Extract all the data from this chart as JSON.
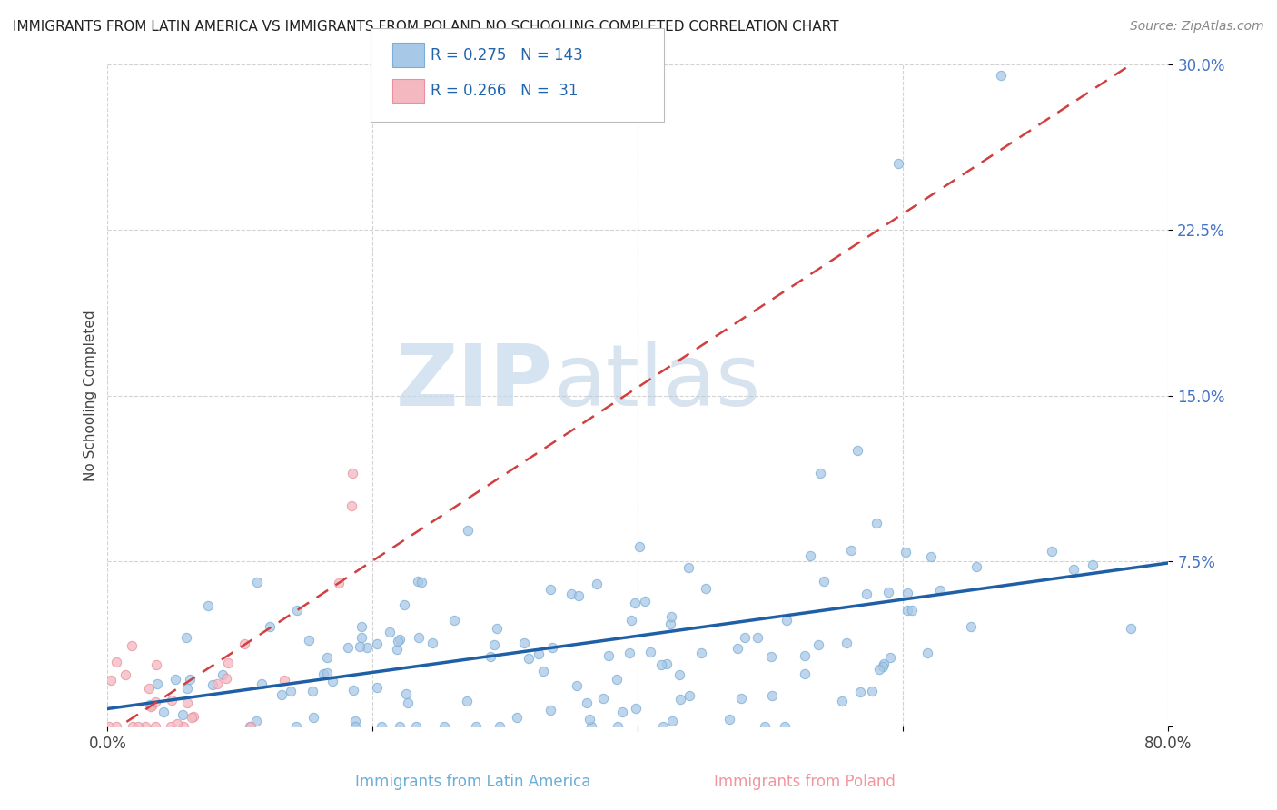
{
  "title": "IMMIGRANTS FROM LATIN AMERICA VS IMMIGRANTS FROM POLAND NO SCHOOLING COMPLETED CORRELATION CHART",
  "source": "Source: ZipAtlas.com",
  "ylabel": "No Schooling Completed",
  "xlabel_latin": "Immigrants from Latin America",
  "xlabel_poland": "Immigrants from Poland",
  "xlim": [
    0.0,
    0.8
  ],
  "ylim": [
    0.0,
    0.3
  ],
  "xticks": [
    0.0,
    0.2,
    0.4,
    0.6,
    0.8
  ],
  "yticks": [
    0.0,
    0.075,
    0.15,
    0.225,
    0.3
  ],
  "ytick_labels": [
    "",
    "7.5%",
    "15.0%",
    "22.5%",
    "30.0%"
  ],
  "xtick_labels": [
    "0.0%",
    "",
    "",
    "",
    "80.0%"
  ],
  "legend_R_latin": "0.275",
  "legend_N_latin": "143",
  "legend_R_poland": "0.266",
  "legend_N_poland": "31",
  "color_latin": "#a8c8e8",
  "color_poland": "#f4b8c0",
  "color_trendline_latin": "#1f5fa6",
  "color_trendline_poland": "#d04040",
  "watermark_ZIP": "ZIP",
  "watermark_atlas": "atlas",
  "background_color": "#ffffff",
  "grid_color": "#cccccc",
  "R_latin": 0.275,
  "N_latin": 143,
  "R_poland": 0.266,
  "N_poland": 31,
  "seed": 7
}
